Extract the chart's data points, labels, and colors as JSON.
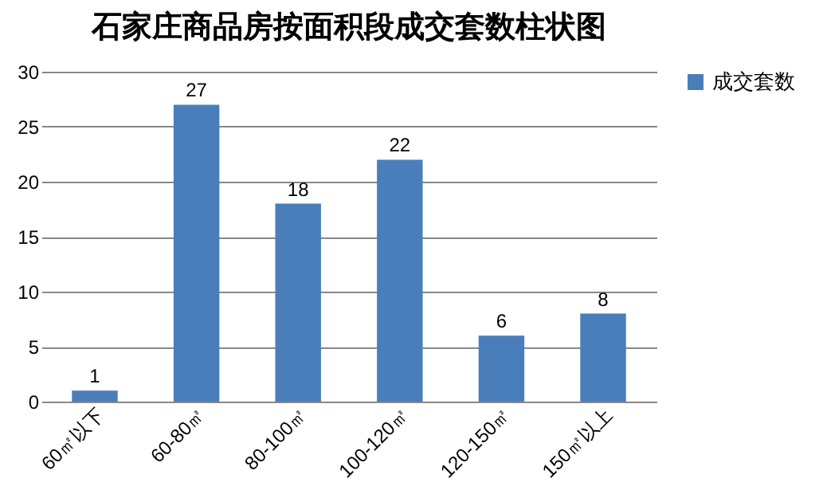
{
  "chart_data": {
    "type": "bar",
    "title": "石家庄商品房按面积段成交套数柱状图",
    "categories": [
      "60㎡以下",
      "60-80㎡",
      "80-100㎡",
      "100-120㎡",
      "120-150㎡",
      "150㎡以上"
    ],
    "series": [
      {
        "name": "成交套数",
        "color": "#4a7ebb",
        "values": [
          1,
          27,
          18,
          22,
          6,
          8
        ]
      }
    ],
    "ylim": [
      0,
      30
    ],
    "yticks": [
      0,
      5,
      10,
      15,
      20,
      25,
      30
    ],
    "grid": "y",
    "legend": "right",
    "data_labels": true
  }
}
